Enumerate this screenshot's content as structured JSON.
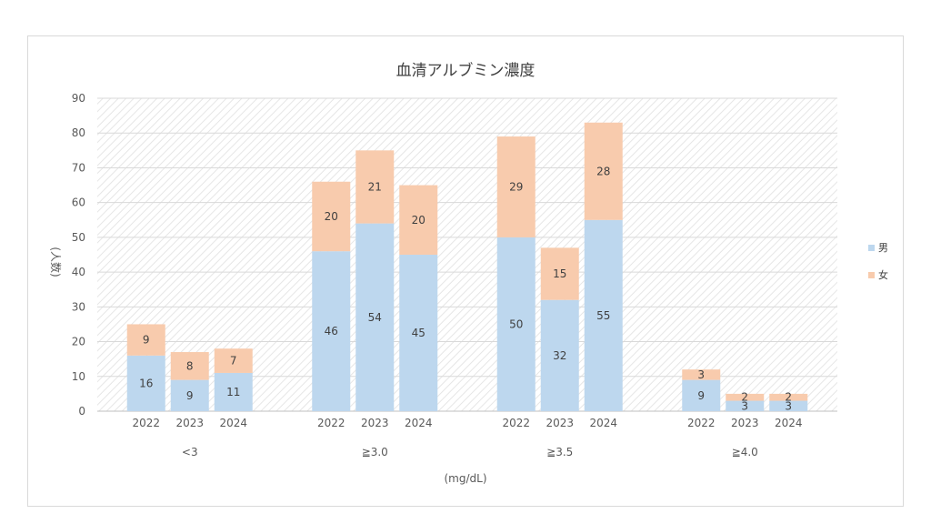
{
  "chart_data": {
    "type": "bar",
    "stacked": true,
    "title": "血清アルブミン濃度",
    "xlabel": "(mg/dL)",
    "ylabel": "(人数)",
    "ylim": [
      0,
      90
    ],
    "yticks": [
      0,
      10,
      20,
      30,
      40,
      50,
      60,
      70,
      80,
      90
    ],
    "grid": true,
    "legend": "right",
    "groups": [
      "<3",
      "≧3.0",
      "≧3.5",
      "≧4.0"
    ],
    "years": [
      "2022",
      "2023",
      "2024"
    ],
    "series": [
      {
        "name": "男",
        "color": "#bdd7ee",
        "values": [
          [
            16,
            9,
            11
          ],
          [
            46,
            54,
            45
          ],
          [
            50,
            32,
            55
          ],
          [
            9,
            3,
            3
          ]
        ]
      },
      {
        "name": "女",
        "color": "#f8cbad",
        "values": [
          [
            9,
            8,
            7
          ],
          [
            20,
            21,
            20
          ],
          [
            29,
            15,
            28
          ],
          [
            3,
            2,
            2
          ]
        ]
      }
    ]
  }
}
